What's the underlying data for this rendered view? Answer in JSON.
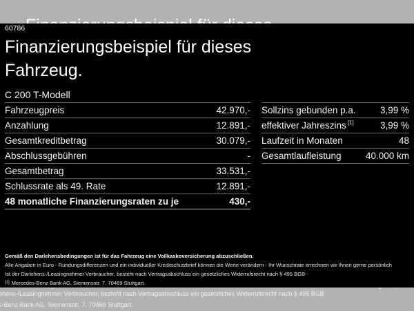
{
  "colors": {
    "background_gray": "#b2b2b2",
    "panel_black": "#000000",
    "separator": "#6a6a6a",
    "separator_strong": "#c2c2c2"
  },
  "page": {
    "ref_number": "60786",
    "title_line1": "Finanzierungsbeispiel für dieses",
    "title_line2": "Fahrzeug.",
    "model": "C 200 T-Modell"
  },
  "left_table": {
    "rows": [
      {
        "label": "Fahrzeugpreis",
        "value": "42.970,-"
      },
      {
        "label": "Anzahlung",
        "value": "12.891,-"
      },
      {
        "label": "Gesamtkreditbetrag",
        "value": "30.079,-"
      },
      {
        "label": "Abschlussgebühren",
        "value": "-"
      },
      {
        "label": "Gesamtbetrag",
        "value": "33.531,-"
      },
      {
        "label": "Schlussrate als 49. Rate",
        "value": "12.891,-"
      },
      {
        "label": "48 monatliche Finanzierungsraten zu je",
        "value": "430,-"
      }
    ]
  },
  "right_table": {
    "rows": [
      {
        "label": "Sollzins gebunden p.a.",
        "value": "3,99 %"
      },
      {
        "label": "effektiver Jahreszins",
        "sup": "[1]",
        "value": "3,99 %"
      },
      {
        "label": "Laufzeit in Monaten",
        "value": "48"
      },
      {
        "label": "Gesamtlaufleistung",
        "value": "40.000 km"
      }
    ]
  },
  "fine_print": {
    "line1": "Gemäß den Darlehensbedingungen ist für das Fahrzeug eine Vollkaskoversicherung abzuschließen.",
    "line2": "Alle Angaben in Euro - Rundungsdifferenzen und ein individueller Kreditschutzbrief können die Werte verändern - Ihr Wunschrate errechnen wir Ihnen gerne persönlich",
    "line3": "Ist der Darlehens-/Leasingnehmer Verbraucher, besteht nach Vertragsabschluss ein gesetzliches Widerrufsrecht nach § 495 BGB",
    "footnote_marker": "[1]",
    "footnote": "Mercedes-Benz Bank AG, Siemensstr. 7, 70469 Stuttgart."
  },
  "underlay": {
    "line1": "ehens-/Leasingnehmer Verbraucher, besteht nach Vertragsabschluss ein gesetzliches Widerrufsrecht nach § 495 BGB",
    "line2": "s-Benz Bank AG, Siemensstr. 7, 70469 Stuttgart."
  }
}
